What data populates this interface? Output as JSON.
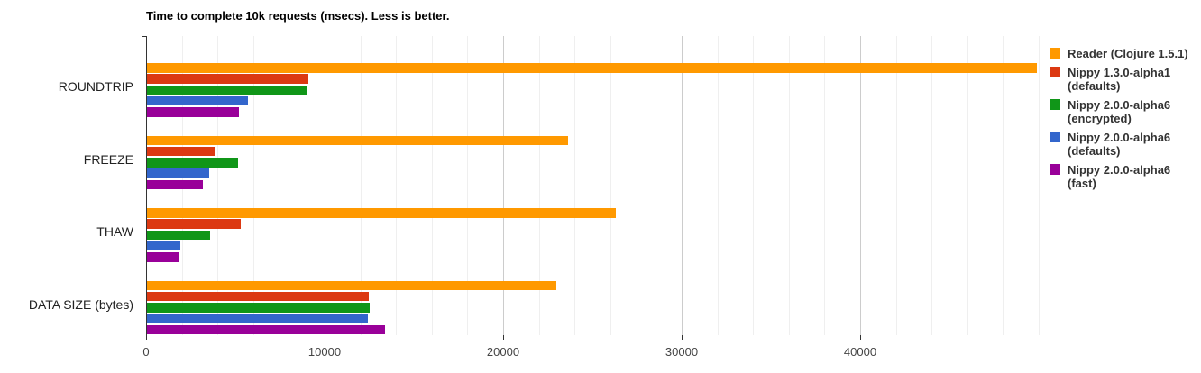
{
  "chart_data": {
    "type": "bar",
    "orientation": "horizontal",
    "title": "Time to complete 10k requests (msecs). Less is better.",
    "categories": [
      "ROUNDTRIP",
      "FREEZE",
      "THAW",
      "DATA SIZE (bytes)"
    ],
    "series": [
      {
        "name": "Reader (Clojure 1.5.1)",
        "legend_lines": [
          "Reader (Clojure 1.5.1)"
        ],
        "color": "#FF9900",
        "values": [
          49900,
          23650,
          26300,
          23000
        ]
      },
      {
        "name": "Nippy 1.3.0-alpha1 (defaults)",
        "legend_lines": [
          "Nippy 1.3.0-alpha1",
          "(defaults)"
        ],
        "color": "#DC3912",
        "values": [
          9100,
          3850,
          5300,
          12450
        ]
      },
      {
        "name": "Nippy 2.0.0-alpha6 (encrypted)",
        "legend_lines": [
          "Nippy 2.0.0-alpha6",
          "(encrypted)"
        ],
        "color": "#109618",
        "values": [
          9050,
          5150,
          3600,
          12500
        ]
      },
      {
        "name": "Nippy 2.0.0-alpha6 (defaults)",
        "legend_lines": [
          "Nippy 2.0.0-alpha6",
          "(defaults)"
        ],
        "color": "#3366CC",
        "values": [
          5700,
          3550,
          1900,
          12400
        ]
      },
      {
        "name": "Nippy 2.0.0-alpha6 (fast)",
        "legend_lines": [
          "Nippy 2.0.0-alpha6 (fast)"
        ],
        "color": "#990099",
        "values": [
          5200,
          3180,
          1800,
          13370
        ]
      }
    ],
    "x_axis": {
      "min": 0,
      "max": 50000,
      "tick_values": [
        0,
        10000,
        20000,
        30000,
        40000
      ],
      "tick_labels": [
        "0",
        "10000",
        "20000",
        "30000",
        "40000"
      ],
      "minor_grid_step": 2000
    },
    "legend_position": "right",
    "grid": true,
    "colors": {
      "background": "#FFFFFF",
      "major_gridline": "#CCCCCC",
      "minor_gridline": "#EFEFEF",
      "axis_line": "#333333",
      "tick_label_text": "#444444",
      "category_label_text": "#222222",
      "legend_text": "#333333",
      "title_text": "#000000"
    }
  }
}
